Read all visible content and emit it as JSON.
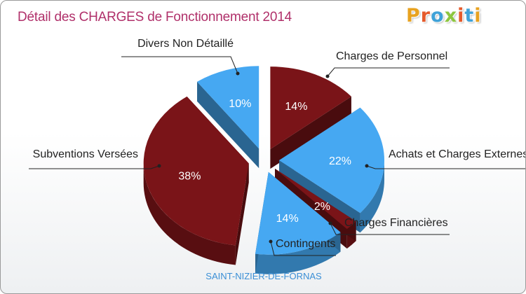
{
  "page": {
    "title": "Détail des CHARGES de Fonctionnement 2014",
    "footer": "SAINT-NIZIER-DE-FORNAS"
  },
  "logo": {
    "letters": [
      "P",
      "r",
      "o",
      "x",
      "i",
      "t",
      "i"
    ],
    "colors": [
      "#e8a21f",
      "#e55a2b",
      "#3fa2d8",
      "#8dc63f",
      "#e55a2b",
      "#3fa2d8",
      "#e8a21f"
    ]
  },
  "chart_data": {
    "type": "pie",
    "title": "Détail des CHARGES de Fonctionnement 2014",
    "slices": [
      {
        "label": "Charges de Personnel",
        "value": 14,
        "value_label": "14%",
        "color": "#7a1418"
      },
      {
        "label": "Achats et Charges Externes",
        "value": 22,
        "value_label": "22%",
        "color": "#46a8f2"
      },
      {
        "label": "Charges Financières",
        "value": 2,
        "value_label": "2%",
        "color": "#7a1418"
      },
      {
        "label": "Contingents",
        "value": 14,
        "value_label": "14%",
        "color": "#46a8f2"
      },
      {
        "label": "Subventions Versées",
        "value": 38,
        "value_label": "38%",
        "color": "#7a1418"
      },
      {
        "label": "Divers Non Détaillé",
        "value": 10,
        "value_label": "10%",
        "color": "#46a8f2"
      }
    ],
    "style": "3d-exploded"
  }
}
